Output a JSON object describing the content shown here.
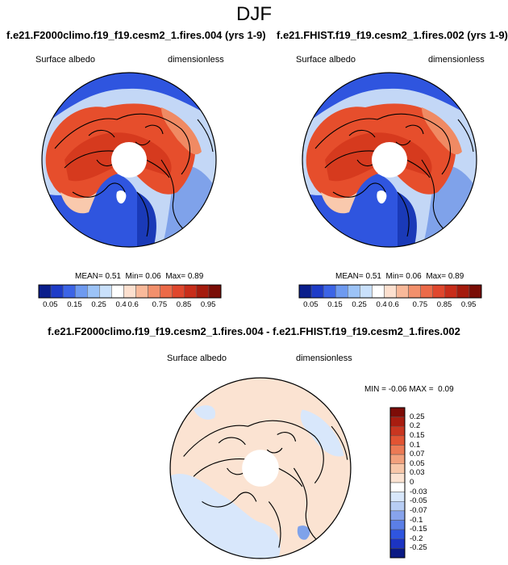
{
  "figure": {
    "season": "DJF",
    "variable": "Surface albedo",
    "units": "dimensionless"
  },
  "panels": [
    {
      "id": "case1",
      "title": "f.e21.F2000climo.f19_f19.cesm2_1.fires.004 (yrs 1-9)",
      "mean_label": "MEAN=",
      "mean_value": "0.51",
      "min_label": "Min=",
      "min_value": "0.06",
      "max_label": "Max=",
      "max_value": "0.89"
    },
    {
      "id": "case2",
      "title": "f.e21.FHIST.f19_f19.cesm2_1.fires.002 (yrs 1-9)",
      "mean_label": "MEAN=",
      "mean_value": "0.51",
      "min_label": "Min=",
      "min_value": "0.06",
      "max_label": "Max=",
      "max_value": "0.89"
    }
  ],
  "difference": {
    "title": "f.e21.F2000climo.f19_f19.cesm2_1.fires.004 - f.e21.FHIST.f19_f19.cesm2_1.fires.002",
    "min_label": "MIN =",
    "min_value": "-0.06",
    "max_label": "MAX =",
    "max_value": "0.09"
  },
  "colorbar_abs": {
    "colors": [
      "#0a1e8c",
      "#1e3cc8",
      "#3c64e6",
      "#6e9af0",
      "#9cc3f7",
      "#c9e0fb",
      "#ffffff",
      "#fde0cf",
      "#f9b99a",
      "#f2906c",
      "#ec6a48",
      "#e0472d",
      "#c82d1a",
      "#a51b0d",
      "#7a0d06"
    ],
    "tick_labels": [
      "0.05",
      "0.15",
      "0.25",
      "0.4",
      "0.6",
      "0.75",
      "0.85",
      "0.95"
    ],
    "tick_positions": [
      1,
      3,
      5,
      7,
      8,
      10,
      12,
      14
    ]
  },
  "colorbar_diff": {
    "colors": [
      "#0b1a84",
      "#1c34c2",
      "#2f55df",
      "#5b7fe6",
      "#87a3ec",
      "#b7cdf4",
      "#d8e7fb",
      "#ffffff",
      "#fbe3d2",
      "#f7c7a9",
      "#f2a17d",
      "#ec7a55",
      "#e25433",
      "#c93620",
      "#a81d10",
      "#7d0c07"
    ],
    "tick_labels": [
      "0.25",
      "0.2",
      "0.15",
      "0.1",
      "0.07",
      "0.05",
      "0.03",
      "0",
      "-0.03",
      "-0.05",
      "-0.07",
      "-0.1",
      "-0.15",
      "-0.2",
      "-0.25"
    ]
  },
  "map_colors": {
    "ice_blue": "#2f55df",
    "deep_blue": "#1a3ab8",
    "mid_blue": "#7fa2ea",
    "light_blue": "#c3d7f6",
    "white": "#ffffff",
    "peach": "#f9c9ad",
    "light_red": "#f08a63",
    "red": "#e64e2c",
    "dark_red": "#d63a1e",
    "diff_bg": "#fbe3d2",
    "diff_blue": "#d8e7fb"
  }
}
